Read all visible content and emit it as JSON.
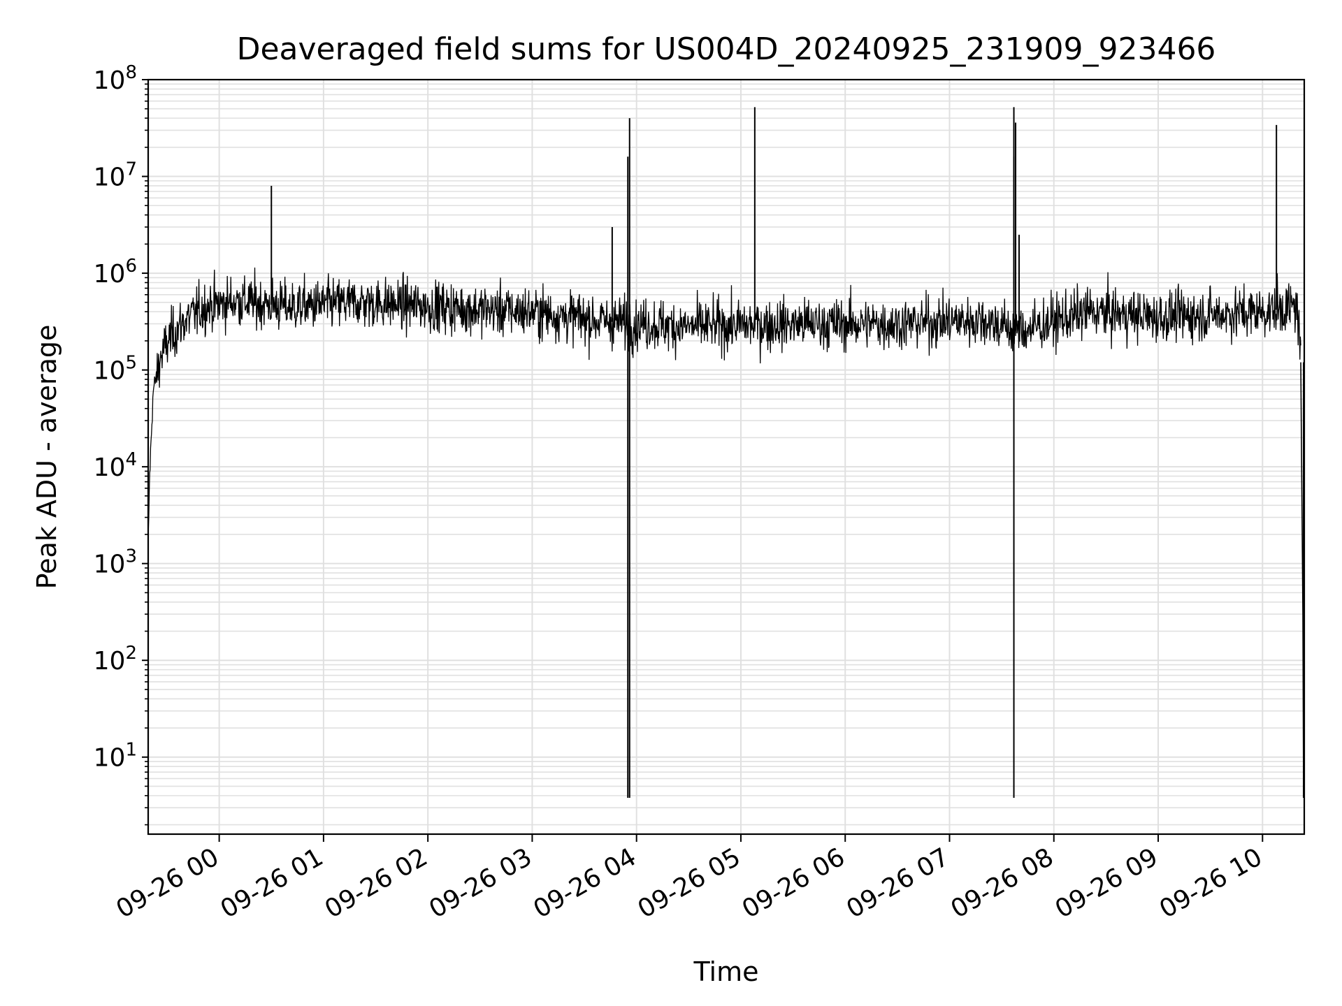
{
  "chart_data": {
    "type": "line",
    "title": "Deaveraged field sums for US004D_20240925_231909_923466",
    "xlabel": "Time",
    "ylabel": "Peak ADU - average",
    "yscale": "log",
    "ylim": [
      1.6,
      100000000
    ],
    "y_tick_bases": [
      "10",
      "10",
      "10",
      "10",
      "10",
      "10",
      "10",
      "10"
    ],
    "y_tick_exponents": [
      "1",
      "2",
      "3",
      "4",
      "5",
      "6",
      "7",
      "8"
    ],
    "x_tick_labels": [
      "09-26 00",
      "09-26 01",
      "09-26 02",
      "09-26 03",
      "09-26 04",
      "09-26 05",
      "09-26 06",
      "09-26 07",
      "09-26 08",
      "09-26 09",
      "09-26 10"
    ],
    "xlim": [
      "2024-09-25 23:19:09",
      "2024-09-26 10:24:00"
    ],
    "grid": true,
    "line_color": "#000000",
    "grid_color": "#e0e0e0",
    "series": [
      {
        "baseline": [
          [
            "2024-09-25 23:19",
            1200
          ],
          [
            "2024-09-25 23:20",
            8000
          ],
          [
            "2024-09-25 23:22",
            60000
          ],
          [
            "2024-09-25 23:26",
            130000
          ],
          [
            "2024-09-25 23:32",
            220000
          ],
          [
            "2024-09-25 23:40",
            320000
          ],
          [
            "2024-09-25 23:52",
            450000
          ],
          [
            "2024-09-26 00:10",
            520000
          ],
          [
            "2024-09-26 00:40",
            450000
          ],
          [
            "2024-09-26 01:20",
            500000
          ],
          [
            "2024-09-26 01:40",
            480000
          ],
          [
            "2024-09-26 02:30",
            420000
          ],
          [
            "2024-09-26 03:00",
            400000
          ],
          [
            "2024-09-26 03:40",
            320000
          ],
          [
            "2024-09-26 04:30",
            280000
          ],
          [
            "2024-09-26 05:30",
            300000
          ],
          [
            "2024-09-26 06:30",
            300000
          ],
          [
            "2024-09-26 07:20",
            330000
          ],
          [
            "2024-09-26 07:40",
            250000
          ],
          [
            "2024-09-26 08:20",
            400000
          ],
          [
            "2024-09-26 09:00",
            350000
          ],
          [
            "2024-09-26 10:00",
            400000
          ],
          [
            "2024-09-26 10:20",
            450000
          ],
          [
            "2024-09-26 10:22",
            120000
          ]
        ],
        "spikes": [
          [
            "2024-09-26 00:30",
            8000000
          ],
          [
            "2024-09-26 03:46",
            3000000
          ],
          [
            "2024-09-26 03:55",
            16000000
          ],
          [
            "2024-09-26 03:56",
            40000000
          ],
          [
            "2024-09-26 05:08",
            52000000
          ],
          [
            "2024-09-26 07:37",
            16000000
          ],
          [
            "2024-09-26 07:37",
            52000000
          ],
          [
            "2024-09-26 07:38",
            36000000
          ],
          [
            "2024-09-26 07:40",
            2500000
          ],
          [
            "2024-09-26 10:08",
            34000000
          ]
        ],
        "dips": [
          [
            "2024-09-26 03:55",
            3.8
          ],
          [
            "2024-09-26 03:56",
            3.8
          ],
          [
            "2024-09-26 07:37",
            3.8
          ],
          [
            "2024-09-26 10:24",
            3.8
          ]
        ]
      }
    ]
  }
}
